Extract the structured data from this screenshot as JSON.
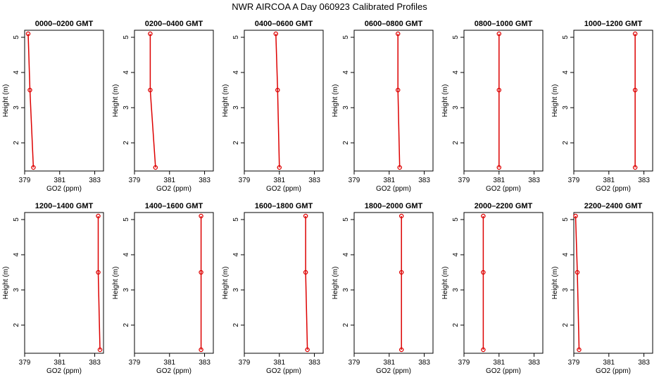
{
  "title": "NWR AIRCOA A  Day 060923  Calibrated Profiles",
  "colors": {
    "series": "#dd0000",
    "axes": "#000000"
  },
  "chart_data": [
    {
      "type": "line",
      "title": "0000–0200 GMT",
      "xlabel": "GO2 (ppm)",
      "ylabel": "Height (m)",
      "xlim": [
        379,
        383.5
      ],
      "ylim": [
        1.2,
        5.2
      ],
      "xticks": [
        "379",
        "381",
        "383"
      ],
      "yticks": [
        "2",
        "3",
        "4",
        "5"
      ],
      "points": [
        {
          "x": 379.2,
          "y": 5.1
        },
        {
          "x": 379.3,
          "y": 3.5
        },
        {
          "x": 379.5,
          "y": 1.3
        }
      ]
    },
    {
      "type": "line",
      "title": "0200–0400 GMT",
      "xlabel": "GO2 (ppm)",
      "ylabel": "Height (m)",
      "xlim": [
        379,
        383.5
      ],
      "ylim": [
        1.2,
        5.2
      ],
      "xticks": [
        "379",
        "381",
        "383"
      ],
      "yticks": [
        "2",
        "3",
        "4",
        "5"
      ],
      "points": [
        {
          "x": 379.9,
          "y": 5.1
        },
        {
          "x": 379.9,
          "y": 3.5
        },
        {
          "x": 380.2,
          "y": 1.3
        }
      ]
    },
    {
      "type": "line",
      "title": "0400–0600 GMT",
      "xlabel": "GO2 (ppm)",
      "ylabel": "Height (m)",
      "xlim": [
        379,
        383.5
      ],
      "ylim": [
        1.2,
        5.2
      ],
      "xticks": [
        "379",
        "381",
        "383"
      ],
      "yticks": [
        "2",
        "3",
        "4",
        "5"
      ],
      "points": [
        {
          "x": 380.8,
          "y": 5.1
        },
        {
          "x": 380.9,
          "y": 3.5
        },
        {
          "x": 381.0,
          "y": 1.3
        }
      ]
    },
    {
      "type": "line",
      "title": "0600–0800 GMT",
      "xlabel": "GO2 (ppm)",
      "ylabel": "Height (m)",
      "xlim": [
        379,
        383.5
      ],
      "ylim": [
        1.2,
        5.2
      ],
      "xticks": [
        "379",
        "381",
        "383"
      ],
      "yticks": [
        "2",
        "3",
        "4",
        "5"
      ],
      "points": [
        {
          "x": 381.5,
          "y": 5.1
        },
        {
          "x": 381.5,
          "y": 3.5
        },
        {
          "x": 381.6,
          "y": 1.3
        }
      ]
    },
    {
      "type": "line",
      "title": "0800–1000 GMT",
      "xlabel": "GO2 (ppm)",
      "ylabel": "Height (m)",
      "xlim": [
        379,
        383.5
      ],
      "ylim": [
        1.2,
        5.2
      ],
      "xticks": [
        "379",
        "381",
        "383"
      ],
      "yticks": [
        "2",
        "3",
        "4",
        "5"
      ],
      "points": [
        {
          "x": 381.0,
          "y": 5.1
        },
        {
          "x": 381.0,
          "y": 3.5
        },
        {
          "x": 381.0,
          "y": 1.3
        }
      ]
    },
    {
      "type": "line",
      "title": "1000–1200 GMT",
      "xlabel": "GO2 (ppm)",
      "ylabel": "Height (m)",
      "xlim": [
        379,
        383.5
      ],
      "ylim": [
        1.2,
        5.2
      ],
      "xticks": [
        "379",
        "381",
        "383"
      ],
      "yticks": [
        "2",
        "3",
        "4",
        "5"
      ],
      "points": [
        {
          "x": 382.5,
          "y": 5.1
        },
        {
          "x": 382.5,
          "y": 3.5
        },
        {
          "x": 382.5,
          "y": 1.3
        }
      ]
    },
    {
      "type": "line",
      "title": "1200–1400 GMT",
      "xlabel": "GO2 (ppm)",
      "ylabel": "Height (m)",
      "xlim": [
        379,
        383.5
      ],
      "ylim": [
        1.2,
        5.2
      ],
      "xticks": [
        "379",
        "381",
        "383"
      ],
      "yticks": [
        "2",
        "3",
        "4",
        "5"
      ],
      "points": [
        {
          "x": 383.2,
          "y": 5.1
        },
        {
          "x": 383.2,
          "y": 3.5
        },
        {
          "x": 383.3,
          "y": 1.3
        }
      ]
    },
    {
      "type": "line",
      "title": "1400–1600 GMT",
      "xlabel": "GO2 (ppm)",
      "ylabel": "Height (m)",
      "xlim": [
        379,
        383.5
      ],
      "ylim": [
        1.2,
        5.2
      ],
      "xticks": [
        "379",
        "381",
        "383"
      ],
      "yticks": [
        "2",
        "3",
        "4",
        "5"
      ],
      "points": [
        {
          "x": 382.8,
          "y": 5.1
        },
        {
          "x": 382.8,
          "y": 3.5
        },
        {
          "x": 382.8,
          "y": 1.3
        }
      ]
    },
    {
      "type": "line",
      "title": "1600–1800 GMT",
      "xlabel": "GO2 (ppm)",
      "ylabel": "Height (m)",
      "xlim": [
        379,
        383.5
      ],
      "ylim": [
        1.2,
        5.2
      ],
      "xticks": [
        "379",
        "381",
        "383"
      ],
      "yticks": [
        "2",
        "3",
        "4",
        "5"
      ],
      "points": [
        {
          "x": 382.5,
          "y": 5.1
        },
        {
          "x": 382.5,
          "y": 3.5
        },
        {
          "x": 382.6,
          "y": 1.3
        }
      ]
    },
    {
      "type": "line",
      "title": "1800–2000 GMT",
      "xlabel": "GO2 (ppm)",
      "ylabel": "Height (m)",
      "xlim": [
        379,
        383.5
      ],
      "ylim": [
        1.2,
        5.2
      ],
      "xticks": [
        "379",
        "381",
        "383"
      ],
      "yticks": [
        "2",
        "3",
        "4",
        "5"
      ],
      "points": [
        {
          "x": 381.7,
          "y": 5.1
        },
        {
          "x": 381.7,
          "y": 3.5
        },
        {
          "x": 381.7,
          "y": 1.3
        }
      ]
    },
    {
      "type": "line",
      "title": "2000–2200 GMT",
      "xlabel": "GO2 (ppm)",
      "ylabel": "Height (m)",
      "xlim": [
        379,
        383.5
      ],
      "ylim": [
        1.2,
        5.2
      ],
      "xticks": [
        "379",
        "381",
        "383"
      ],
      "yticks": [
        "2",
        "3",
        "4",
        "5"
      ],
      "points": [
        {
          "x": 380.1,
          "y": 5.1
        },
        {
          "x": 380.1,
          "y": 3.5
        },
        {
          "x": 380.1,
          "y": 1.3
        }
      ]
    },
    {
      "type": "line",
      "title": "2200–2400 GMT",
      "xlabel": "GO2 (ppm)",
      "ylabel": "Height (m)",
      "xlim": [
        379,
        383.5
      ],
      "ylim": [
        1.2,
        5.2
      ],
      "xticks": [
        "379",
        "381",
        "383"
      ],
      "yticks": [
        "2",
        "3",
        "4",
        "5"
      ],
      "points": [
        {
          "x": 379.1,
          "y": 5.1
        },
        {
          "x": 379.2,
          "y": 3.5
        },
        {
          "x": 379.3,
          "y": 1.3
        }
      ]
    }
  ]
}
